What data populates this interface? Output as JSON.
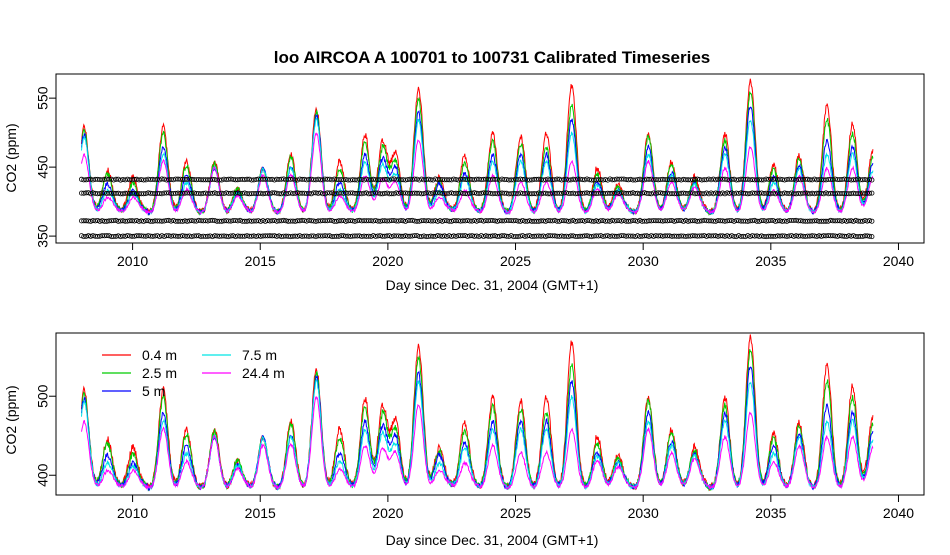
{
  "chart_data": [
    {
      "type": "line",
      "title": "loo   AIRCOA  A    100701  to  100731   Calibrated Timeseries",
      "xlabel": "Day since Dec. 31, 2004 (GMT+1)",
      "ylabel": "CO2 (ppm)",
      "xlim": [
        2007,
        2041
      ],
      "ylim": [
        340,
        585
      ],
      "xticks": [
        2010,
        2015,
        2020,
        2025,
        2030,
        2035,
        2040
      ],
      "yticks": [
        350,
        450,
        550
      ],
      "grid": false,
      "x_start": 2008,
      "x_end": 2039,
      "baseline": 390,
      "series": [
        {
          "name": "0.4 m",
          "color": "#ff0000"
        },
        {
          "name": "2.5 m",
          "color": "#00cc00"
        },
        {
          "name": "5 m",
          "color": "#0000ff"
        },
        {
          "name": "7.5 m",
          "color": "#00e5e5"
        },
        {
          "name": "24.4 m",
          "color": "#ff00ff"
        }
      ],
      "peaks": [
        {
          "x": 2008.1,
          "values": [
            510,
            505,
            500,
            495,
            470
          ]
        },
        {
          "x": 2009.0,
          "values": [
            450,
            445,
            430,
            420,
            410
          ]
        },
        {
          "x": 2010.0,
          "values": [
            440,
            430,
            420,
            415,
            410
          ]
        },
        {
          "x": 2011.2,
          "values": [
            510,
            500,
            480,
            470,
            460
          ]
        },
        {
          "x": 2012.1,
          "values": [
            460,
            455,
            440,
            430,
            420
          ]
        },
        {
          "x": 2013.2,
          "values": [
            460,
            455,
            450,
            450,
            450
          ]
        },
        {
          "x": 2014.1,
          "values": [
            420,
            420,
            415,
            415,
            410
          ]
        },
        {
          "x": 2015.1,
          "values": [
            450,
            450,
            450,
            450,
            440
          ]
        },
        {
          "x": 2016.2,
          "values": [
            470,
            465,
            450,
            450,
            440
          ]
        },
        {
          "x": 2017.2,
          "values": [
            535,
            530,
            525,
            520,
            500
          ]
        },
        {
          "x": 2018.1,
          "values": [
            460,
            450,
            430,
            420,
            410
          ]
        },
        {
          "x": 2019.1,
          "values": [
            500,
            490,
            470,
            460,
            440
          ]
        },
        {
          "x": 2019.8,
          "values": [
            495,
            485,
            470,
            460,
            440
          ]
        },
        {
          "x": 2020.3,
          "values": [
            470,
            460,
            450,
            440,
            430
          ]
        },
        {
          "x": 2021.2,
          "values": [
            565,
            550,
            530,
            520,
            490
          ]
        },
        {
          "x": 2022.0,
          "values": [
            440,
            435,
            430,
            420,
            410
          ]
        },
        {
          "x": 2023.0,
          "values": [
            470,
            460,
            445,
            440,
            420
          ]
        },
        {
          "x": 2024.1,
          "values": [
            500,
            490,
            470,
            460,
            440
          ]
        },
        {
          "x": 2025.2,
          "values": [
            495,
            485,
            470,
            460,
            430
          ]
        },
        {
          "x": 2026.2,
          "values": [
            500,
            480,
            470,
            460,
            430
          ]
        },
        {
          "x": 2027.2,
          "values": [
            570,
            540,
            520,
            500,
            460
          ]
        },
        {
          "x": 2028.2,
          "values": [
            450,
            440,
            430,
            425,
            420
          ]
        },
        {
          "x": 2029.0,
          "values": [
            430,
            425,
            420,
            420,
            415
          ]
        },
        {
          "x": 2030.2,
          "values": [
            500,
            495,
            480,
            470,
            460
          ]
        },
        {
          "x": 2031.1,
          "values": [
            460,
            455,
            445,
            440,
            430
          ]
        },
        {
          "x": 2032.0,
          "values": [
            440,
            435,
            430,
            430,
            425
          ]
        },
        {
          "x": 2033.2,
          "values": [
            500,
            490,
            480,
            470,
            450
          ]
        },
        {
          "x": 2034.2,
          "values": [
            575,
            560,
            540,
            520,
            480
          ]
        },
        {
          "x": 2035.1,
          "values": [
            455,
            450,
            440,
            430,
            420
          ]
        },
        {
          "x": 2036.1,
          "values": [
            470,
            465,
            455,
            450,
            440
          ]
        },
        {
          "x": 2037.2,
          "values": [
            540,
            520,
            490,
            470,
            450
          ]
        },
        {
          "x": 2038.2,
          "values": [
            515,
            500,
            480,
            470,
            450
          ]
        },
        {
          "x": 2039.0,
          "values": [
            480,
            470,
            460,
            450,
            440
          ]
        }
      ],
      "calibration_levels": [
        350,
        372,
        412,
        432
      ],
      "calibration_marker": "open circles (black)"
    },
    {
      "type": "line",
      "xlabel": "Day since Dec. 31, 2004 (GMT+1)",
      "ylabel": "CO2 (ppm)",
      "xlim": [
        2007,
        2041
      ],
      "ylim": [
        375,
        580
      ],
      "xticks": [
        2010,
        2015,
        2020,
        2025,
        2030,
        2035,
        2040
      ],
      "yticks": [
        400,
        500
      ],
      "grid": false,
      "legend_position": "top-left",
      "legend": [
        {
          "label": "0.4 m",
          "color": "#ff0000"
        },
        {
          "label": "2.5 m",
          "color": "#00cc00"
        },
        {
          "label": "5 m",
          "color": "#0000ff"
        },
        {
          "label": "7.5 m",
          "color": "#00e5e5"
        },
        {
          "label": "24.4 m",
          "color": "#ff00ff"
        }
      ]
    }
  ]
}
